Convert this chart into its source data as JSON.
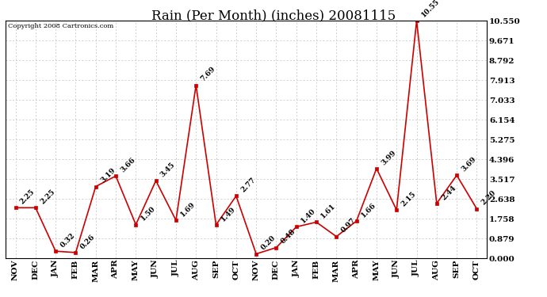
{
  "title": "Rain (Per Month) (inches) 20081115",
  "copyright_text": "Copyright 2008 Cartronics.com",
  "categories": [
    "NOV",
    "DEC",
    "JAN",
    "FEB",
    "MAR",
    "APR",
    "MAY",
    "JUN",
    "JUL",
    "AUG",
    "SEP",
    "OCT",
    "NOV",
    "DEC",
    "JAN",
    "FEB",
    "MAR",
    "APR",
    "MAY",
    "JUN",
    "JUL",
    "AUG",
    "SEP",
    "OCT"
  ],
  "values": [
    2.25,
    2.25,
    0.32,
    0.26,
    3.19,
    3.66,
    1.5,
    3.45,
    1.69,
    7.69,
    1.49,
    2.77,
    0.2,
    0.48,
    1.4,
    1.61,
    0.97,
    1.66,
    3.99,
    2.15,
    10.55,
    2.44,
    3.69,
    2.2
  ],
  "line_color": "#cc0000",
  "marker_color": "#cc0000",
  "bg_color": "#ffffff",
  "plot_bg_color": "#ffffff",
  "grid_color": "#c0c0c0",
  "title_fontsize": 12,
  "tick_label_fontsize": 7.5,
  "annotation_fontsize": 6.5,
  "ylim": [
    0.0,
    10.55
  ],
  "yticks": [
    0.0,
    0.879,
    1.758,
    2.638,
    3.517,
    4.396,
    5.275,
    6.154,
    7.033,
    7.913,
    8.792,
    9.671,
    10.55
  ]
}
